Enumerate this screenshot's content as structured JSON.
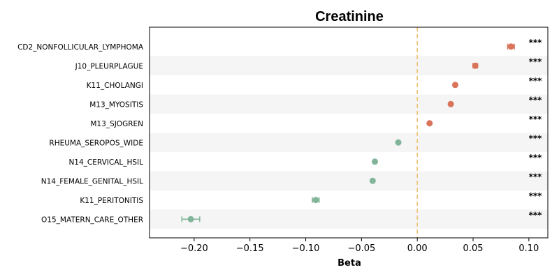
{
  "chart_data": {
    "type": "scatter",
    "title": "Creatinine",
    "xlabel": "Beta",
    "ylabel": "",
    "xlim": [
      -0.24,
      0.117
    ],
    "xticks": [
      -0.2,
      -0.15,
      -0.1,
      -0.05,
      0.0,
      0.05,
      0.1
    ],
    "xtick_labels": [
      "−0.20",
      "−0.15",
      "−0.10",
      "−0.05",
      "0.00",
      "0.05",
      "0.10"
    ],
    "reference_line_x": 0.0,
    "grid": false,
    "alternating_row_shading": true,
    "categories": [
      "CD2_NONFOLLICULAR_LYMPHOMA",
      "J10_PLEURPLAGUE",
      "K11_CHOLANGI",
      "M13_MYOSITIS",
      "M13_SJOGREN",
      "RHEUMA_SEROPOS_WIDE",
      "N14_CERVICAL_HSIL",
      "N14_FEMALE_GENITAL_HSIL",
      "K11_PERITONITIS",
      "O15_MATERN_CARE_OTHER"
    ],
    "values": [
      0.084,
      0.052,
      0.034,
      0.03,
      0.011,
      -0.017,
      -0.038,
      -0.04,
      -0.091,
      -0.203
    ],
    "ci_low": [
      0.081,
      0.05,
      0.033,
      0.029,
      0.01,
      -0.018,
      -0.039,
      -0.041,
      -0.094,
      -0.211
    ],
    "ci_high": [
      0.087,
      0.054,
      0.035,
      0.031,
      0.012,
      -0.016,
      -0.037,
      -0.039,
      -0.088,
      -0.195
    ],
    "significance": [
      "***",
      "***",
      "***",
      "***",
      "***",
      "***",
      "***",
      "***",
      "***",
      "***"
    ],
    "colors": {
      "positive": "#d9735a",
      "negative": "#82b49a",
      "reference_line": "#f0c27a",
      "row_shade": "#f5f5f5"
    }
  }
}
